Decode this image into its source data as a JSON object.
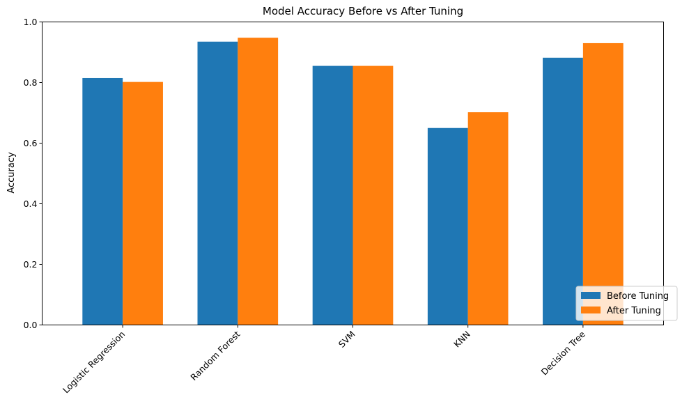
{
  "chart_data": {
    "type": "bar",
    "title": "Model Accuracy Before vs After Tuning",
    "xlabel": "",
    "ylabel": "Accuracy",
    "categories": [
      "Logistic Regression",
      "Random Forest",
      "SVM",
      "KNN",
      "Decision Tree"
    ],
    "series": [
      {
        "name": "Before Tuning",
        "color": "#1f77b4",
        "values": [
          0.815,
          0.935,
          0.855,
          0.65,
          0.882
        ]
      },
      {
        "name": "After Tuning",
        "color": "#ff7f0e",
        "values": [
          0.802,
          0.948,
          0.855,
          0.702,
          0.93
        ]
      }
    ],
    "ylim": [
      0,
      1.0
    ],
    "yticks": [
      "0.0",
      "0.2",
      "0.4",
      "0.6",
      "0.8",
      "1.0"
    ],
    "grid": false,
    "legend_position": "lower-right"
  }
}
